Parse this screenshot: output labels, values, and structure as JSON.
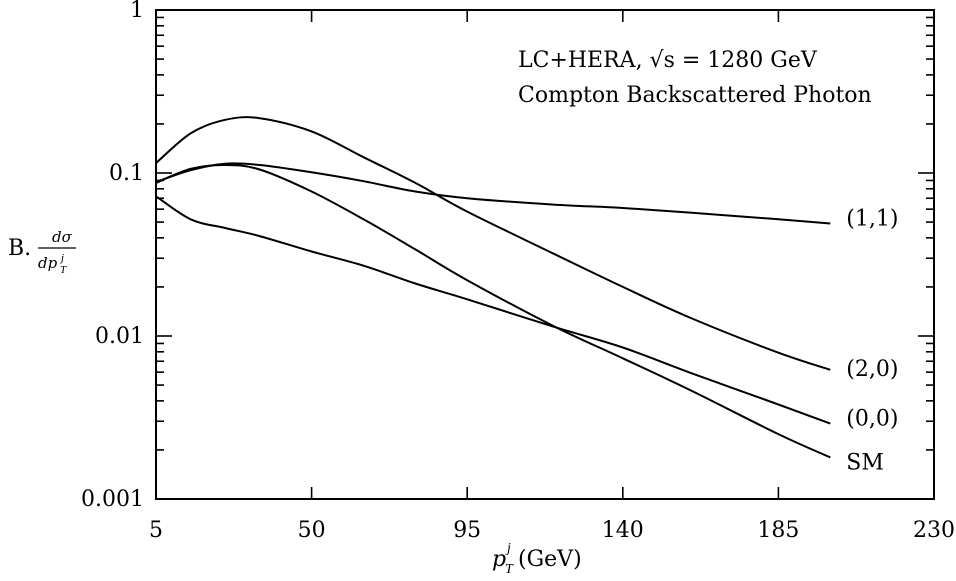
{
  "chart_data": {
    "type": "line",
    "title": "",
    "annotations": [
      "LC+HERA, √s = 1280 GeV",
      "Compton Backscattered Photon"
    ],
    "xlabel": {
      "main": "p",
      "sub": "T",
      "sup": "j",
      "unit": "(GeV)"
    },
    "ylabel": {
      "prefix": "B.",
      "numerator": "dσ",
      "denominator_main": "dp",
      "denominator_sub": "T",
      "denominator_sup": "j"
    },
    "xlim": [
      5,
      230
    ],
    "ylim": [
      0.001,
      1
    ],
    "yscale": "log",
    "grid": false,
    "x_ticks": [
      5,
      50,
      95,
      140,
      185,
      230
    ],
    "x_tick_labels": [
      "5",
      "50",
      "95",
      "140",
      "185",
      "230"
    ],
    "y_ticks": [
      0.001,
      0.01,
      0.1,
      1
    ],
    "y_tick_labels": [
      "0.001",
      "0.01",
      "0.1",
      "1"
    ],
    "series": [
      {
        "name": "(1,1)",
        "x": [
          5,
          15,
          25,
          35,
          50,
          65,
          80,
          95,
          120,
          140,
          160,
          185,
          200
        ],
        "y": [
          0.088,
          0.104,
          0.114,
          0.112,
          0.101,
          0.089,
          0.077,
          0.07,
          0.064,
          0.061,
          0.057,
          0.052,
          0.049
        ]
      },
      {
        "name": "(2,0)",
        "x": [
          5,
          15,
          25,
          35,
          50,
          65,
          80,
          95,
          120,
          140,
          160,
          185,
          200
        ],
        "y": [
          0.115,
          0.175,
          0.212,
          0.217,
          0.18,
          0.125,
          0.087,
          0.058,
          0.032,
          0.02,
          0.0128,
          0.0079,
          0.0062
        ]
      },
      {
        "name": "(0,0)",
        "x": [
          5,
          15,
          25,
          35,
          50,
          65,
          80,
          95,
          120,
          140,
          160,
          185,
          200
        ],
        "y": [
          0.072,
          0.052,
          0.046,
          0.041,
          0.033,
          0.027,
          0.021,
          0.0168,
          0.0114,
          0.0085,
          0.0059,
          0.0038,
          0.0029
        ]
      },
      {
        "name": "SM",
        "x": [
          5,
          15,
          25,
          35,
          50,
          65,
          80,
          95,
          120,
          140,
          160,
          185,
          200
        ],
        "y": [
          0.087,
          0.106,
          0.112,
          0.105,
          0.077,
          0.052,
          0.034,
          0.022,
          0.0115,
          0.0073,
          0.0046,
          0.0025,
          0.0018
        ]
      }
    ]
  }
}
